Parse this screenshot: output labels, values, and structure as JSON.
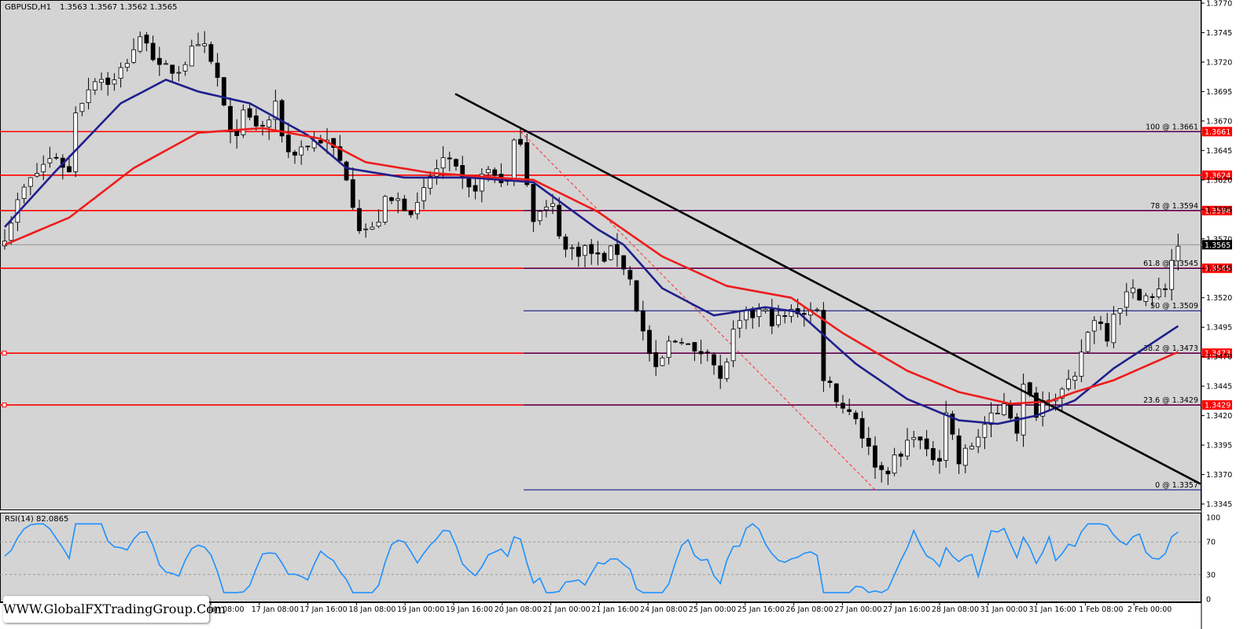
{
  "header": {
    "symbol": "GBPUSD,H1",
    "ohlc": "1.3563 1.3567 1.3562 1.3565"
  },
  "indicator": {
    "label": "RSI(14) 82.0865",
    "levels": [
      "100",
      "70",
      "30",
      "0"
    ]
  },
  "watermark": {
    "text": "WWW.GlobalFXTradingGroup.Com"
  },
  "price_axis": {
    "ticks": [
      "1.3770",
      "1.3745",
      "1.3720",
      "1.3695",
      "1.3670",
      "1.3645",
      "1.3620",
      "1.3595",
      "1.3570",
      "1.3545",
      "1.3520",
      "1.3495",
      "1.3470",
      "1.3445",
      "1.3420",
      "1.3395",
      "1.3370",
      "1.3345"
    ]
  },
  "time_axis": {
    "labels": [
      "Jan 08:00",
      "17 Jan 08:00",
      "17 Jan 16:00",
      "18 Jan 08:00",
      "19 Jan 00:00",
      "19 Jan 16:00",
      "20 Jan 08:00",
      "21 Jan 00:00",
      "21 Jan 16:00",
      "24 Jan 08:00",
      "25 Jan 00:00",
      "25 Jan 16:00",
      "26 Jan 08:00",
      "27 Jan 00:00",
      "27 Jan 16:00",
      "28 Jan 08:00",
      "31 Jan 00:00",
      "31 Jan 16:00",
      "1 Feb 08:00",
      "2 Feb 00:00"
    ]
  },
  "colors": {
    "background": "#d4d4d4",
    "bull_candle": "#ffffff",
    "bear_candle": "#000000",
    "ma_fast": "#1f1f8c",
    "ma_slow": "#ee1c1c",
    "level_line": "#ff0000",
    "fib_line": "#00007a",
    "trend_line": "#000000",
    "rsi_line": "#1e90ff"
  },
  "chart_data": {
    "type": "candlestick",
    "symbol": "GBPUSD",
    "timeframe": "H1",
    "ylim": [
      1.3345,
      1.377
    ],
    "current_price": "1.3565",
    "resistance_levels": [
      {
        "value": 1.3661,
        "label": "1.3661"
      },
      {
        "value": 1.3624,
        "label": "1.3624"
      },
      {
        "value": 1.3594,
        "label": "1.3594"
      },
      {
        "value": 1.3545,
        "label": "1.3545"
      },
      {
        "value": 1.3473,
        "label": "1.3473"
      },
      {
        "value": 1.3429,
        "label": "1.3429"
      }
    ],
    "fibonacci": [
      {
        "label": "100 @ 1.3661",
        "value": 1.3661
      },
      {
        "label": "78 @ 1.3594",
        "value": 1.3594
      },
      {
        "label": "61.8 @ 1.3545",
        "value": 1.3545
      },
      {
        "label": "50 @ 1.3509",
        "value": 1.3509
      },
      {
        "label": "38.2 @ 1.3473",
        "value": 1.3473
      },
      {
        "label": "23.6 @ 1.3429",
        "value": 1.3429
      },
      {
        "label": "0 @ 1.3357",
        "value": 1.3357
      }
    ],
    "trend_line": {
      "from_index": 69,
      "from_value": 1.3693,
      "to_index": 182,
      "to_value": 1.3362
    },
    "fib_swing": {
      "from_index": 80,
      "from_value": 1.3661,
      "to_index": 135,
      "to_value": 1.3357
    },
    "close_anchors": [
      [
        0,
        1.3575
      ],
      [
        3,
        1.3612
      ],
      [
        6,
        1.3633
      ],
      [
        8,
        1.3641
      ],
      [
        10,
        1.3626
      ],
      [
        11,
        1.368
      ],
      [
        14,
        1.3708
      ],
      [
        17,
        1.3703
      ],
      [
        20,
        1.3732
      ],
      [
        22,
        1.3742
      ],
      [
        24,
        1.3712
      ],
      [
        27,
        1.3715
      ],
      [
        29,
        1.3728
      ],
      [
        31,
        1.373
      ],
      [
        33,
        1.3706
      ],
      [
        35,
        1.3655
      ],
      [
        37,
        1.3673
      ],
      [
        40,
        1.3664
      ],
      [
        42,
        1.368
      ],
      [
        44,
        1.3643
      ],
      [
        47,
        1.365
      ],
      [
        49,
        1.3655
      ],
      [
        51,
        1.3645
      ],
      [
        53,
        1.3625
      ],
      [
        55,
        1.3582
      ],
      [
        57,
        1.3576
      ],
      [
        59,
        1.36
      ],
      [
        61,
        1.3602
      ],
      [
        64,
        1.3595
      ],
      [
        66,
        1.3622
      ],
      [
        68,
        1.3637
      ],
      [
        70,
        1.3625
      ],
      [
        72,
        1.361
      ],
      [
        75,
        1.3628
      ],
      [
        78,
        1.3618
      ],
      [
        79,
        1.3648
      ],
      [
        80,
        1.3657
      ],
      [
        81,
        1.362
      ],
      [
        82,
        1.359
      ],
      [
        85,
        1.3596
      ],
      [
        87,
        1.356
      ],
      [
        90,
        1.3562
      ],
      [
        92,
        1.3553
      ],
      [
        95,
        1.356
      ],
      [
        97,
        1.3535
      ],
      [
        99,
        1.349
      ],
      [
        101,
        1.3455
      ],
      [
        103,
        1.348
      ],
      [
        105,
        1.3488
      ],
      [
        107,
        1.347
      ],
      [
        109,
        1.348
      ],
      [
        111,
        1.3448
      ],
      [
        113,
        1.3488
      ],
      [
        115,
        1.3503
      ],
      [
        117,
        1.3508
      ],
      [
        120,
        1.35
      ],
      [
        123,
        1.351
      ],
      [
        126,
        1.3508
      ],
      [
        127,
        1.3455
      ],
      [
        130,
        1.3428
      ],
      [
        132,
        1.342
      ],
      [
        134,
        1.339
      ],
      [
        136,
        1.3373
      ],
      [
        139,
        1.3385
      ],
      [
        141,
        1.3408
      ],
      [
        143,
        1.3385
      ],
      [
        145,
        1.3388
      ],
      [
        146,
        1.3425
      ],
      [
        148,
        1.338
      ],
      [
        150,
        1.3395
      ],
      [
        152,
        1.3412
      ],
      [
        154,
        1.342
      ],
      [
        155,
        1.3433
      ],
      [
        157,
        1.341
      ],
      [
        158,
        1.3443
      ],
      [
        160,
        1.3425
      ],
      [
        162,
        1.344
      ],
      [
        164,
        1.344
      ],
      [
        166,
        1.3448
      ],
      [
        167,
        1.3475
      ],
      [
        169,
        1.3505
      ],
      [
        171,
        1.349
      ],
      [
        172,
        1.351
      ],
      [
        174,
        1.3522
      ],
      [
        176,
        1.3525
      ],
      [
        178,
        1.3518
      ],
      [
        180,
        1.353
      ],
      [
        181,
        1.3553
      ],
      [
        182,
        1.3565
      ]
    ],
    "moving_averages": [
      {
        "color": "#1f1f8c",
        "anchors": [
          [
            0,
            1.358
          ],
          [
            8,
            1.3628
          ],
          [
            18,
            1.3685
          ],
          [
            25,
            1.3705
          ],
          [
            30,
            1.3695
          ],
          [
            38,
            1.3685
          ],
          [
            47,
            1.3658
          ],
          [
            53,
            1.363
          ],
          [
            62,
            1.3622
          ],
          [
            72,
            1.3622
          ],
          [
            82,
            1.3618
          ],
          [
            92,
            1.3578
          ],
          [
            96,
            1.3565
          ],
          [
            102,
            1.3528
          ],
          [
            110,
            1.3505
          ],
          [
            118,
            1.3512
          ],
          [
            123,
            1.3508
          ],
          [
            132,
            1.3464
          ],
          [
            140,
            1.3434
          ],
          [
            148,
            1.3416
          ],
          [
            154,
            1.3413
          ],
          [
            160,
            1.342
          ],
          [
            166,
            1.3433
          ],
          [
            172,
            1.346
          ],
          [
            182,
            1.3496
          ]
        ]
      },
      {
        "color": "#ee1c1c",
        "anchors": [
          [
            0,
            1.3565
          ],
          [
            10,
            1.3588
          ],
          [
            20,
            1.363
          ],
          [
            30,
            1.366
          ],
          [
            40,
            1.3664
          ],
          [
            49,
            1.3655
          ],
          [
            56,
            1.3635
          ],
          [
            66,
            1.3626
          ],
          [
            76,
            1.3622
          ],
          [
            82,
            1.362
          ],
          [
            92,
            1.3593
          ],
          [
            102,
            1.3555
          ],
          [
            112,
            1.353
          ],
          [
            122,
            1.352
          ],
          [
            130,
            1.349
          ],
          [
            140,
            1.3458
          ],
          [
            148,
            1.344
          ],
          [
            156,
            1.343
          ],
          [
            162,
            1.3432
          ],
          [
            166,
            1.344
          ],
          [
            172,
            1.345
          ],
          [
            182,
            1.3474
          ]
        ]
      }
    ],
    "rsi": {
      "name": "RSI(14)",
      "current": 82.0865,
      "levels": [
        70,
        30
      ],
      "range": [
        0,
        100
      ]
    }
  }
}
